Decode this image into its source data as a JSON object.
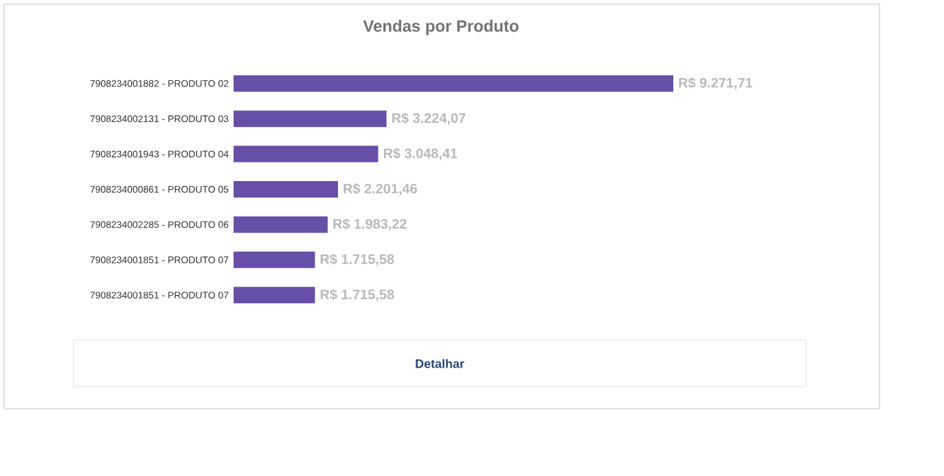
{
  "chart_data": {
    "type": "bar",
    "orientation": "horizontal",
    "title": "Vendas por Produto",
    "categories": [
      "7908234001882 - PRODUTO 02",
      "7908234002131 - PRODUTO 03",
      "7908234001943 - PRODUTO 04",
      "7908234000861 - PRODUTO 05",
      "7908234002285 - PRODUTO 06",
      "7908234001851 - PRODUTO 07",
      "7908234001851 - PRODUTO 07"
    ],
    "values": [
      9271.71,
      3224.07,
      3048.41,
      2201.46,
      1983.22,
      1715.58,
      1715.58
    ],
    "value_labels": [
      "R$ 9.271,71",
      "R$ 3.224,07",
      "R$ 3.048,41",
      "R$ 2.201,46",
      "R$ 1.983,22",
      "R$ 1.715,58",
      "R$ 1.715,58"
    ],
    "color": "#674ea7",
    "annotations": [
      "Detalhar"
    ]
  }
}
